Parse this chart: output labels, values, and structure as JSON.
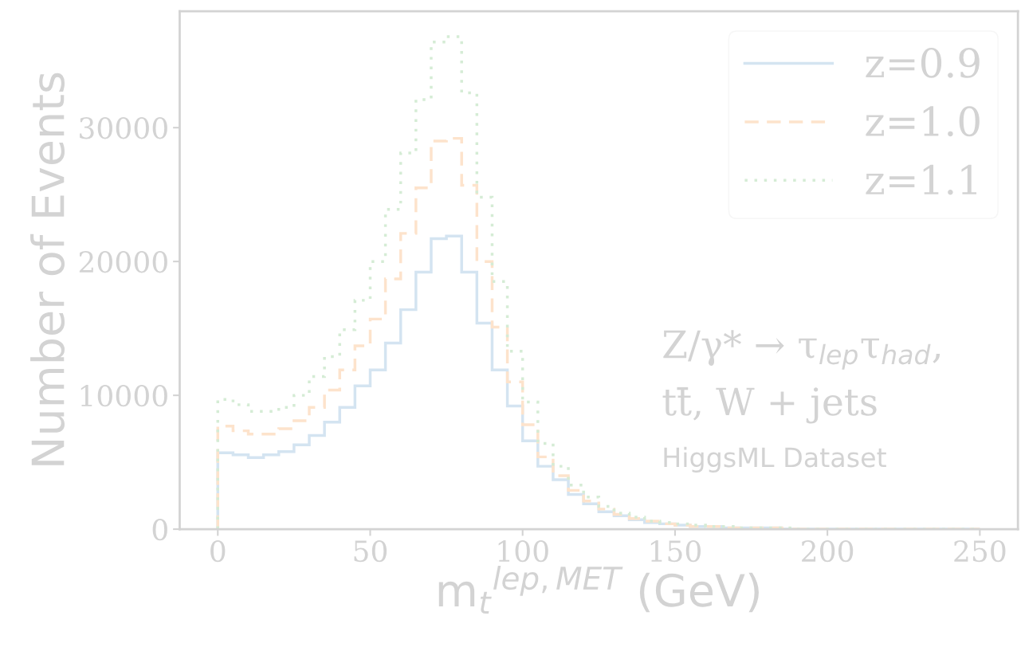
{
  "chart_data": {
    "type": "histogram",
    "xlabel": "m$_{t}$$^{lep,MET}$ (GeV)",
    "ylabel": "Number of Events",
    "bins": [
      0,
      5,
      10,
      15,
      20,
      25,
      30,
      35,
      40,
      45,
      50,
      55,
      60,
      65,
      70,
      75,
      80,
      85,
      90,
      95,
      100,
      105,
      110,
      115,
      120,
      125,
      130,
      135,
      140,
      145,
      150,
      155,
      160,
      165,
      170,
      175,
      180,
      185,
      190,
      195,
      200,
      205,
      210,
      215,
      220,
      225,
      230,
      235,
      240,
      245,
      250
    ],
    "series": [
      {
        "name": "z=0.9",
        "color": "#d4e4f1",
        "line_style": "solid",
        "values": [
          5700,
          5550,
          5350,
          5550,
          5800,
          6300,
          7000,
          8000,
          9100,
          10700,
          11900,
          13900,
          16400,
          19200,
          21700,
          21900,
          19200,
          15400,
          11900,
          9200,
          6600,
          4700,
          3700,
          2600,
          1900,
          1300,
          1000,
          700,
          500,
          400,
          300,
          200,
          200,
          100,
          100,
          100,
          100,
          0,
          0,
          0,
          0,
          0,
          0,
          0,
          0,
          0,
          0,
          0,
          0,
          0
        ]
      },
      {
        "name": "z=1.0",
        "color": "#fde3cc",
        "line_style": "dashed",
        "values": [
          7700,
          7350,
          7100,
          7100,
          7500,
          8100,
          9100,
          10400,
          11900,
          13700,
          15700,
          18700,
          22100,
          25500,
          29000,
          29200,
          25700,
          20000,
          15100,
          11000,
          7800,
          5400,
          4000,
          2900,
          2100,
          1500,
          1100,
          800,
          600,
          400,
          300,
          200,
          200,
          100,
          100,
          100,
          100,
          0,
          0,
          0,
          0,
          0,
          0,
          0,
          0,
          0,
          0,
          0,
          0,
          0
        ]
      },
      {
        "name": "z=1.1",
        "color": "#d5ecd5",
        "line_style": "dotted",
        "values": [
          9700,
          9300,
          8800,
          8800,
          9100,
          10000,
          11400,
          12900,
          14900,
          17100,
          20000,
          23900,
          28100,
          32100,
          36400,
          36800,
          32600,
          24800,
          18500,
          13300,
          9500,
          6400,
          4700,
          3300,
          2400,
          1700,
          1200,
          900,
          600,
          500,
          400,
          300,
          200,
          200,
          100,
          100,
          100,
          100,
          0,
          0,
          0,
          0,
          0,
          0,
          0,
          0,
          0,
          0,
          0,
          0
        ]
      }
    ],
    "xlim": [
      -12.5,
      262.5
    ],
    "xticks": [
      0,
      50,
      100,
      150,
      200,
      250
    ],
    "ylim": [
      0,
      38700
    ],
    "yticks": [
      0,
      10000,
      20000,
      30000
    ],
    "legend": "top right",
    "annotations": [
      "Z/γ* → τ$_{lep}$τ$_{had}$,",
      "tt̄, W + jets",
      "HiggsML Dataset"
    ]
  }
}
